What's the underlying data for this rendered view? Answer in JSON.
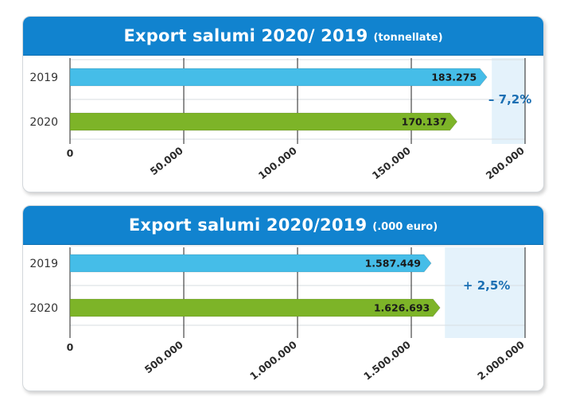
{
  "colors": {
    "header": "#1183cf",
    "bar_2019": "#45bde8",
    "bar_2020": "#7db428",
    "shade": "#e4f2fb",
    "change_text": "#1a6fb3"
  },
  "chart_data": [
    {
      "type": "bar",
      "orientation": "horizontal",
      "title": "Export salumi 2020/ 2019",
      "unit": "(tonnellate)",
      "categories": [
        "2019",
        "2020"
      ],
      "values": [
        183275,
        170137
      ],
      "value_labels": [
        "183.275",
        "170.137"
      ],
      "xlim": [
        0,
        200000
      ],
      "ticks": [
        0,
        50000,
        100000,
        150000,
        200000
      ],
      "tick_labels": [
        "0",
        "50.000",
        "100.000",
        "150.000",
        "200.000"
      ],
      "change_label": "– 7,2%",
      "grid": true
    },
    {
      "type": "bar",
      "orientation": "horizontal",
      "title": "Export salumi 2020/2019",
      "unit": "(.000 euro)",
      "categories": [
        "2019",
        "2020"
      ],
      "values": [
        1587449,
        1626693
      ],
      "value_labels": [
        "1.587.449",
        "1.626.693"
      ],
      "xlim": [
        0,
        2000000
      ],
      "ticks": [
        0,
        500000,
        1000000,
        1500000,
        2000000
      ],
      "tick_labels": [
        "0",
        "500.000",
        "1.000.000",
        "1.500.000",
        "2.000.000"
      ],
      "change_label": "+ 2,5%",
      "grid": true
    }
  ]
}
